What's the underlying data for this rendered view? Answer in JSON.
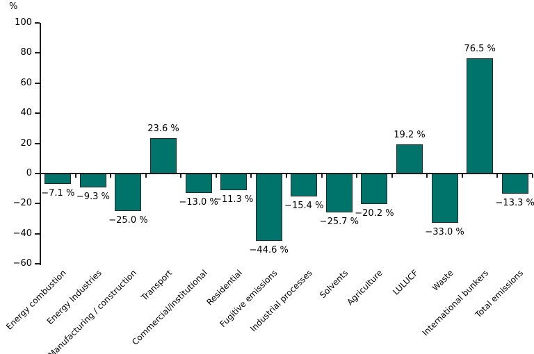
{
  "chart_data": {
    "type": "bar",
    "title": "",
    "ylabel": "%",
    "xlabel": "",
    "grid": false,
    "legend": "none",
    "categories": [
      "Energy combustion",
      "Energy Industries",
      "Manufacturing / construction",
      "Transport",
      "Commercial/institutional",
      "Residential",
      "Fugitive emissions",
      "Industrial processes",
      "Solvents",
      "Agriculture",
      "LULUCF",
      "Waste",
      "International bunkers",
      "Total emissions"
    ],
    "values": [
      -7.1,
      -9.3,
      -25.0,
      23.6,
      -13.0,
      -11.3,
      -44.6,
      -15.4,
      -25.7,
      -20.2,
      19.2,
      -33.0,
      76.5,
      -13.3
    ],
    "value_labels": [
      "−7.1 %",
      "−9.3 %",
      "−25.0 %",
      "23.6 %",
      "−13.0 %",
      "−11.3 %",
      "−44.6 %",
      "−15.4 %",
      "−25.7 %",
      "−20.2 %",
      "19.2 %",
      "−33.0 %",
      "76.5 %",
      "−13.3 %"
    ],
    "ylim": [
      -60,
      100
    ],
    "yticks": [
      100,
      80,
      60,
      40,
      20,
      0,
      -20,
      -40,
      -60
    ],
    "ytick_labels": [
      "100",
      "80",
      "60",
      "40",
      "20",
      "0",
      "−20",
      "−40",
      "−60"
    ],
    "colors": {
      "bar_fill": "#00736B",
      "bar_border": "#262626",
      "axis": "#1a1a1a",
      "text": "#000000",
      "background": "#ffffff"
    }
  }
}
